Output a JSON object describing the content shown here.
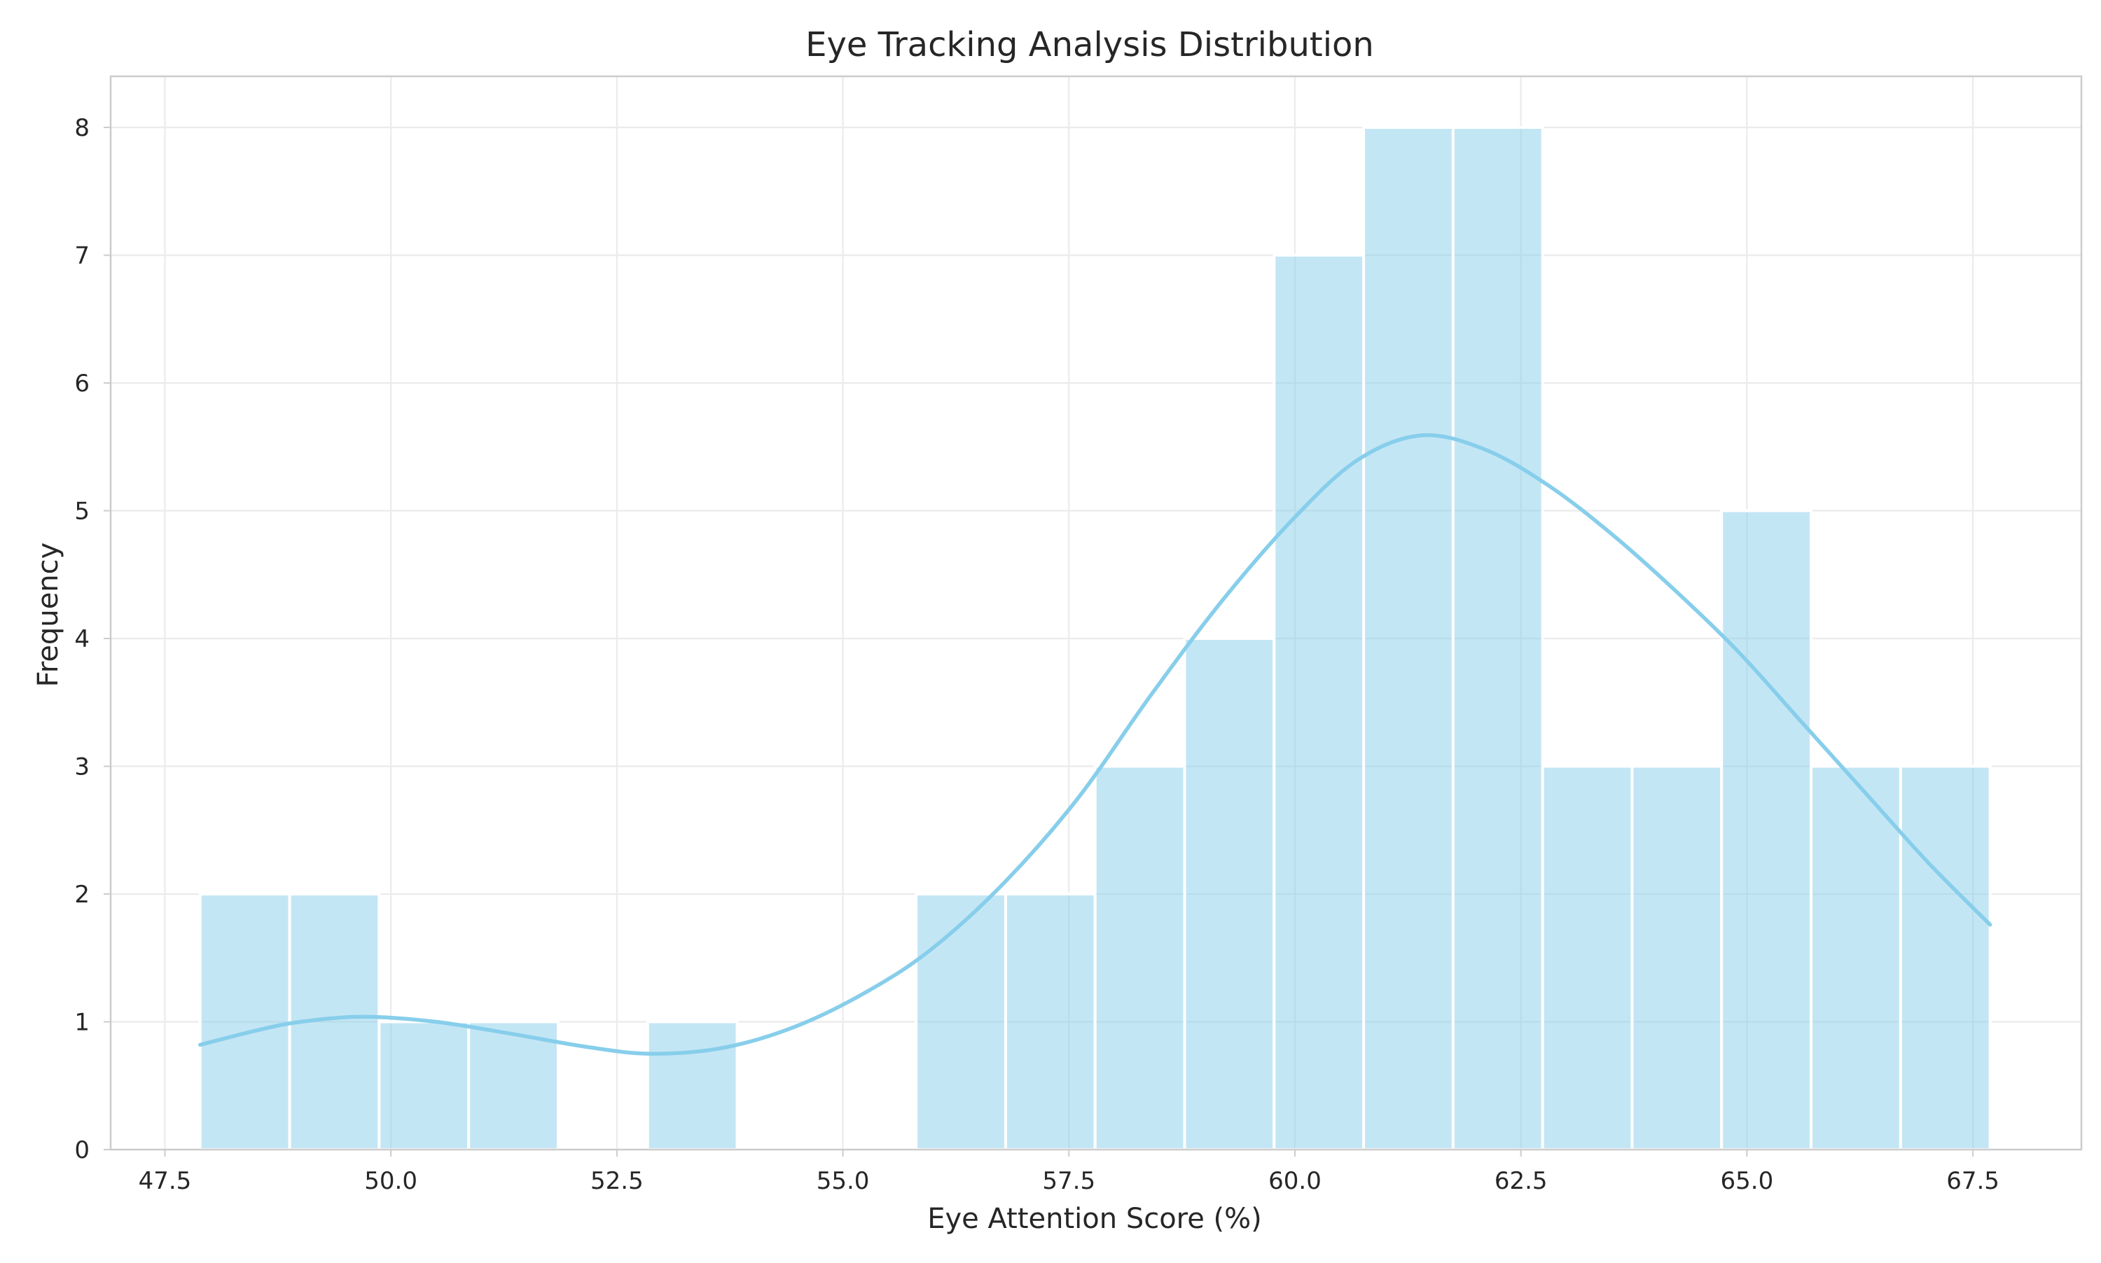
{
  "chart_data": {
    "type": "bar",
    "subtype": "histogram-with-kde",
    "title": "Eye Tracking Analysis Distribution",
    "xlabel": "Eye Attention Score (%)",
    "ylabel": "Frequency",
    "xlim": [
      46.9,
      68.7
    ],
    "ylim": [
      0,
      8.4
    ],
    "xticks": [
      47.5,
      50.0,
      52.5,
      55.0,
      57.5,
      60.0,
      62.5,
      65.0,
      67.5
    ],
    "xtick_labels": [
      "47.5",
      "50.0",
      "52.5",
      "55.0",
      "57.5",
      "60.0",
      "62.5",
      "65.0",
      "67.5"
    ],
    "yticks": [
      0,
      1,
      2,
      3,
      4,
      5,
      6,
      7,
      8
    ],
    "ytick_labels": [
      "0",
      "1",
      "2",
      "3",
      "4",
      "5",
      "6",
      "7",
      "8"
    ],
    "grid": true,
    "bar_color": "#87CEEB",
    "line_color": "#87CEEB",
    "bins": [
      {
        "start": 47.89,
        "end": 48.88,
        "count": 2
      },
      {
        "start": 48.88,
        "end": 49.87,
        "count": 2
      },
      {
        "start": 49.87,
        "end": 50.86,
        "count": 1
      },
      {
        "start": 50.86,
        "end": 51.85,
        "count": 1
      },
      {
        "start": 51.85,
        "end": 52.84,
        "count": 0
      },
      {
        "start": 52.84,
        "end": 53.83,
        "count": 1
      },
      {
        "start": 53.83,
        "end": 54.82,
        "count": 0
      },
      {
        "start": 54.82,
        "end": 55.81,
        "count": 0
      },
      {
        "start": 55.81,
        "end": 56.8,
        "count": 2
      },
      {
        "start": 56.8,
        "end": 57.79,
        "count": 2
      },
      {
        "start": 57.79,
        "end": 58.78,
        "count": 3
      },
      {
        "start": 58.78,
        "end": 59.77,
        "count": 4
      },
      {
        "start": 59.77,
        "end": 60.76,
        "count": 7
      },
      {
        "start": 60.76,
        "end": 61.75,
        "count": 8
      },
      {
        "start": 61.75,
        "end": 62.74,
        "count": 8
      },
      {
        "start": 62.74,
        "end": 63.73,
        "count": 3
      },
      {
        "start": 63.73,
        "end": 64.72,
        "count": 3
      },
      {
        "start": 64.72,
        "end": 65.71,
        "count": 5
      },
      {
        "start": 65.71,
        "end": 66.7,
        "count": 3
      },
      {
        "start": 66.7,
        "end": 67.69,
        "count": 3
      }
    ],
    "kde": [
      {
        "x": 47.89,
        "y": 0.82
      },
      {
        "x": 48.5,
        "y": 0.93
      },
      {
        "x": 49.0,
        "y": 1.0
      },
      {
        "x": 49.7,
        "y": 1.04
      },
      {
        "x": 50.5,
        "y": 1.0
      },
      {
        "x": 51.3,
        "y": 0.91
      },
      {
        "x": 52.2,
        "y": 0.8
      },
      {
        "x": 52.9,
        "y": 0.75
      },
      {
        "x": 53.7,
        "y": 0.8
      },
      {
        "x": 54.5,
        "y": 0.97
      },
      {
        "x": 55.3,
        "y": 1.25
      },
      {
        "x": 56.0,
        "y": 1.58
      },
      {
        "x": 56.8,
        "y": 2.1
      },
      {
        "x": 57.6,
        "y": 2.75
      },
      {
        "x": 58.4,
        "y": 3.55
      },
      {
        "x": 59.2,
        "y": 4.3
      },
      {
        "x": 60.0,
        "y": 4.95
      },
      {
        "x": 60.7,
        "y": 5.4
      },
      {
        "x": 61.4,
        "y": 5.59
      },
      {
        "x": 62.1,
        "y": 5.48
      },
      {
        "x": 62.8,
        "y": 5.2
      },
      {
        "x": 63.5,
        "y": 4.82
      },
      {
        "x": 64.2,
        "y": 4.38
      },
      {
        "x": 64.9,
        "y": 3.9
      },
      {
        "x": 65.6,
        "y": 3.35
      },
      {
        "x": 66.3,
        "y": 2.8
      },
      {
        "x": 67.0,
        "y": 2.25
      },
      {
        "x": 67.69,
        "y": 1.76
      }
    ]
  }
}
